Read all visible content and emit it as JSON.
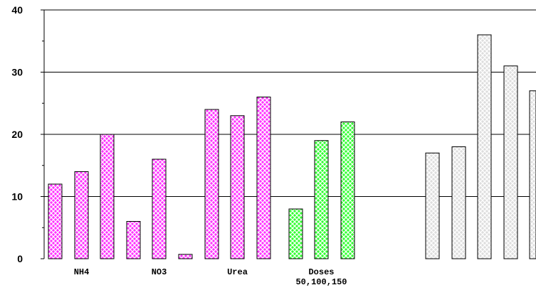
{
  "chart_data": {
    "type": "bar",
    "title": "",
    "xlabel": "",
    "ylabel": "",
    "ylim": [
      0,
      40
    ],
    "yticks": [
      0,
      10,
      20,
      30,
      40
    ],
    "grid": true,
    "bars": [
      {
        "value": 12,
        "color": "#ff33ff"
      },
      {
        "value": 14,
        "color": "#ff33ff"
      },
      {
        "value": 20,
        "color": "#ff33ff"
      },
      {
        "value": 6,
        "color": "#ff33ff"
      },
      {
        "value": 16,
        "color": "#ff33ff"
      },
      {
        "value": 0.7,
        "color": "#ff33ff"
      },
      {
        "value": 24,
        "color": "#ff33ff"
      },
      {
        "value": 23,
        "color": "#ff33ff"
      },
      {
        "value": 26,
        "color": "#ff33ff"
      },
      {
        "value": 8,
        "color": "#33ff33"
      },
      {
        "value": 19,
        "color": "#33ff33"
      },
      {
        "value": 22,
        "color": "#33ff33"
      },
      {
        "value": 17,
        "color": "#dddddd"
      },
      {
        "value": 18,
        "color": "#dddddd"
      },
      {
        "value": 36,
        "color": "#dddddd"
      },
      {
        "value": 31,
        "color": "#dddddd"
      },
      {
        "value": 27,
        "color": "#dddddd"
      }
    ],
    "category_labels": [
      {
        "lines": [
          "NH4"
        ],
        "bar_index": 1
      },
      {
        "lines": [
          "NO3"
        ],
        "bar_index": 4
      },
      {
        "lines": [
          "Urea"
        ],
        "bar_index": 7
      },
      {
        "lines": [
          "Doses",
          "50,100,150"
        ],
        "bar_index": 10
      }
    ]
  }
}
